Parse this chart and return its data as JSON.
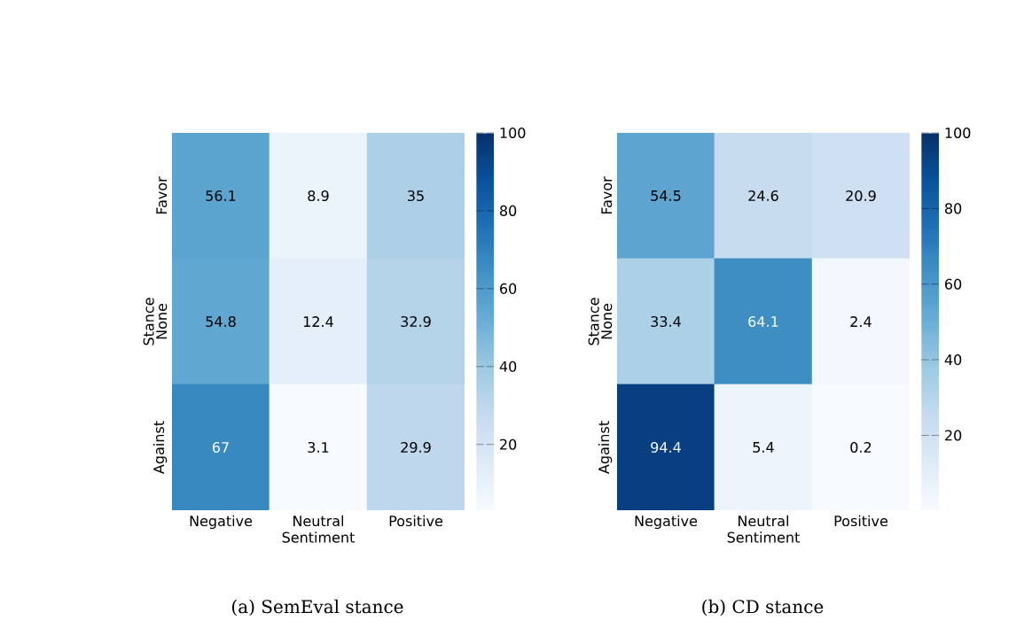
{
  "chart_data": [
    {
      "type": "heatmap",
      "title": "(a)  SemEval stance",
      "xlabel": "Sentiment",
      "ylabel": "Stance",
      "categories": [
        "Negative",
        "Neutral",
        "Positive"
      ],
      "y_categories": [
        "Favor",
        "None",
        "Against"
      ],
      "cells": [
        [
          56.1,
          8.9,
          35
        ],
        [
          54.8,
          12.4,
          32.9
        ],
        [
          67,
          3.1,
          29.9
        ]
      ],
      "clim": [
        3.1,
        100
      ],
      "cticks": [
        20,
        40,
        60,
        80,
        100
      ],
      "data_labels": true
    },
    {
      "type": "heatmap",
      "title": "(b)  CD stance",
      "xlabel": "Sentiment",
      "ylabel": "Stance",
      "categories": [
        "Negative",
        "Neutral",
        "Positive"
      ],
      "y_categories": [
        "Favor",
        "None",
        "Against"
      ],
      "cells": [
        [
          54.5,
          24.6,
          20.9
        ],
        [
          33.4,
          64.1,
          2.4
        ],
        [
          94.4,
          5.4,
          0.2
        ]
      ],
      "clim": [
        0.2,
        100
      ],
      "cticks": [
        20,
        40,
        60,
        80,
        100
      ],
      "data_labels": true
    }
  ]
}
